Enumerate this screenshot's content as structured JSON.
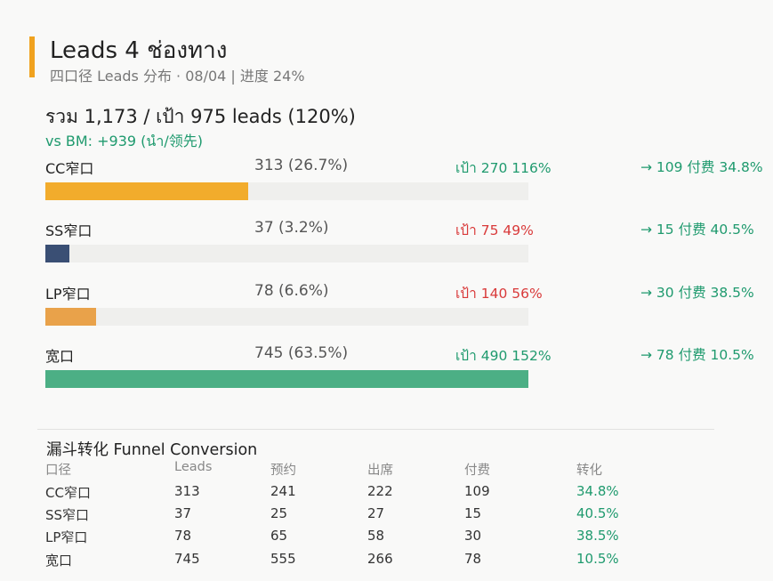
{
  "header": {
    "title": "Leads 4 ช่องทาง",
    "subtitle": "四口径 Leads 分布 · 08/04 | 进度 24%"
  },
  "summary": {
    "total": "รวม 1,173 / เป้า 975  leads  (120%)",
    "vs_bm": "vs BM: +939 (นำ/领先)"
  },
  "colors": {
    "accent": "#f0a21f",
    "good": "#1f9a6e",
    "bad": "#d93a3a",
    "track": "#efefed"
  },
  "channels": [
    {
      "name": "CC窄口",
      "value": "313 (26.7%)",
      "target": "เป้า 270  116%",
      "status": "good",
      "paid": "→ 109 付费 34.8%",
      "share": 0.42,
      "color": "#f2ac2c"
    },
    {
      "name": "SS窄口",
      "value": "37 (3.2%)",
      "target": "เป้า 75  49%",
      "status": "bad",
      "paid": "→ 15 付费 40.5%",
      "share": 0.05,
      "color": "#3a4f74"
    },
    {
      "name": "LP窄口",
      "value": "78 (6.6%)",
      "target": "เป้า 140  56%",
      "status": "bad",
      "paid": "→ 30 付费 38.5%",
      "share": 0.105,
      "color": "#e9a24a"
    },
    {
      "name": "宽口",
      "value": "745 (63.5%)",
      "target": "เป้า 490  152%",
      "status": "good",
      "paid": "→ 78 付费 10.5%",
      "share": 1.0,
      "color": "#4caf85"
    }
  ],
  "funnel": {
    "title": "漏斗转化  Funnel Conversion",
    "headers": [
      "口径",
      "Leads",
      "预约",
      "出席",
      "付费",
      "转化"
    ],
    "rows": [
      [
        "CC窄口",
        "313",
        "241",
        "222",
        "109",
        "34.8%"
      ],
      [
        "SS窄口",
        "37",
        "25",
        "27",
        "15",
        "40.5%"
      ],
      [
        "LP窄口",
        "78",
        "65",
        "58",
        "30",
        "38.5%"
      ],
      [
        "宽口",
        "745",
        "555",
        "266",
        "78",
        "10.5%"
      ]
    ]
  }
}
